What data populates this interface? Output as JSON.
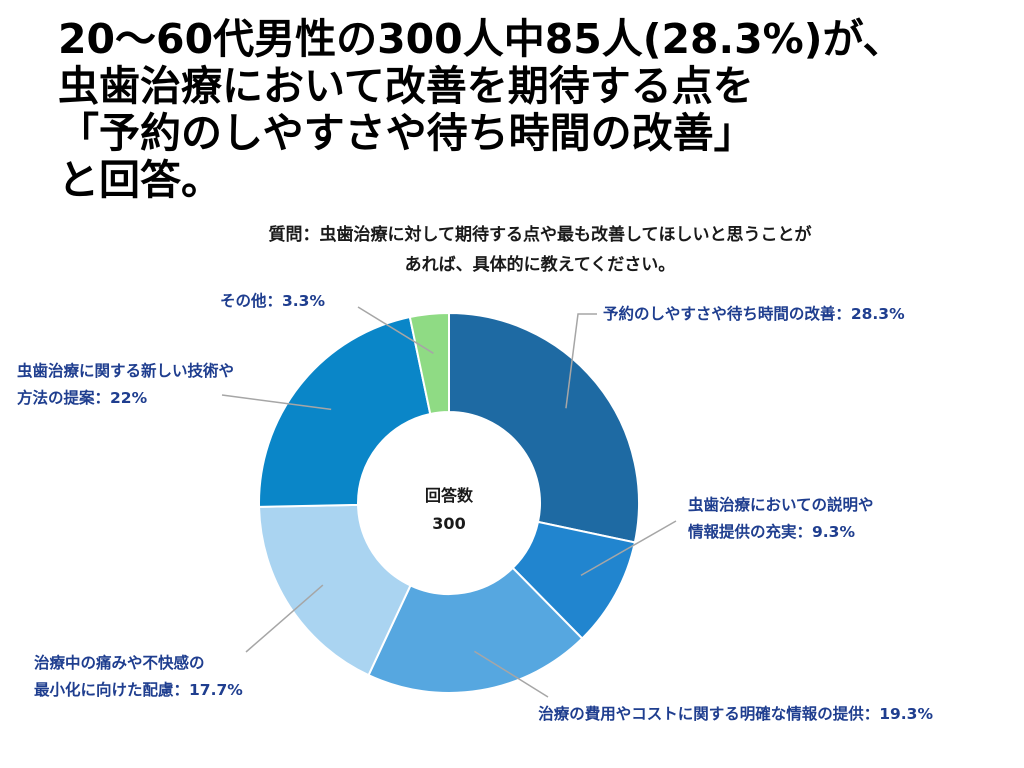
{
  "headline": {
    "lines": [
      "20〜60代男性の300人中85人(28.3%)が、",
      "虫歯治療において改善を期待する点を",
      "「予約のしやすさや待ち時間の改善」",
      "と回答。"
    ]
  },
  "question": {
    "lines": [
      "質問：虫歯治療に対して期待する点や最も改善してほしいと思うことが",
      "あれば、具体的に教えてください。"
    ]
  },
  "chart_data": {
    "type": "pie",
    "donut": true,
    "total_label": "回答数",
    "total": "300",
    "slices": [
      {
        "label_lines": [
          "予約のしやすさや待ち時間の改善：28.3%"
        ],
        "value": 28.3,
        "color": "#1e6aa3"
      },
      {
        "label_lines": [
          "虫歯治療においての説明や",
          "情報提供の充実：9.3%"
        ],
        "value": 9.3,
        "color": "#2185cf"
      },
      {
        "label_lines": [
          "治療の費用やコストに関する明確な情報の提供：19.3%"
        ],
        "value": 19.3,
        "color": "#56a7e0"
      },
      {
        "label_lines": [
          "治療中の痛みや不快感の",
          "最小化に向けた配慮：17.7%"
        ],
        "value": 17.7,
        "color": "#aad4f1"
      },
      {
        "label_lines": [
          "虫歯治療に関する新しい技術や",
          "方法の提案：22%"
        ],
        "value": 22,
        "color": "#0a86c8"
      },
      {
        "label_lines": [
          "その他：3.3%"
        ],
        "value": 3.3,
        "color": "#8fdb84"
      }
    ],
    "label_color": "#1f3e8f",
    "leader_color": "#a6a6a6"
  }
}
